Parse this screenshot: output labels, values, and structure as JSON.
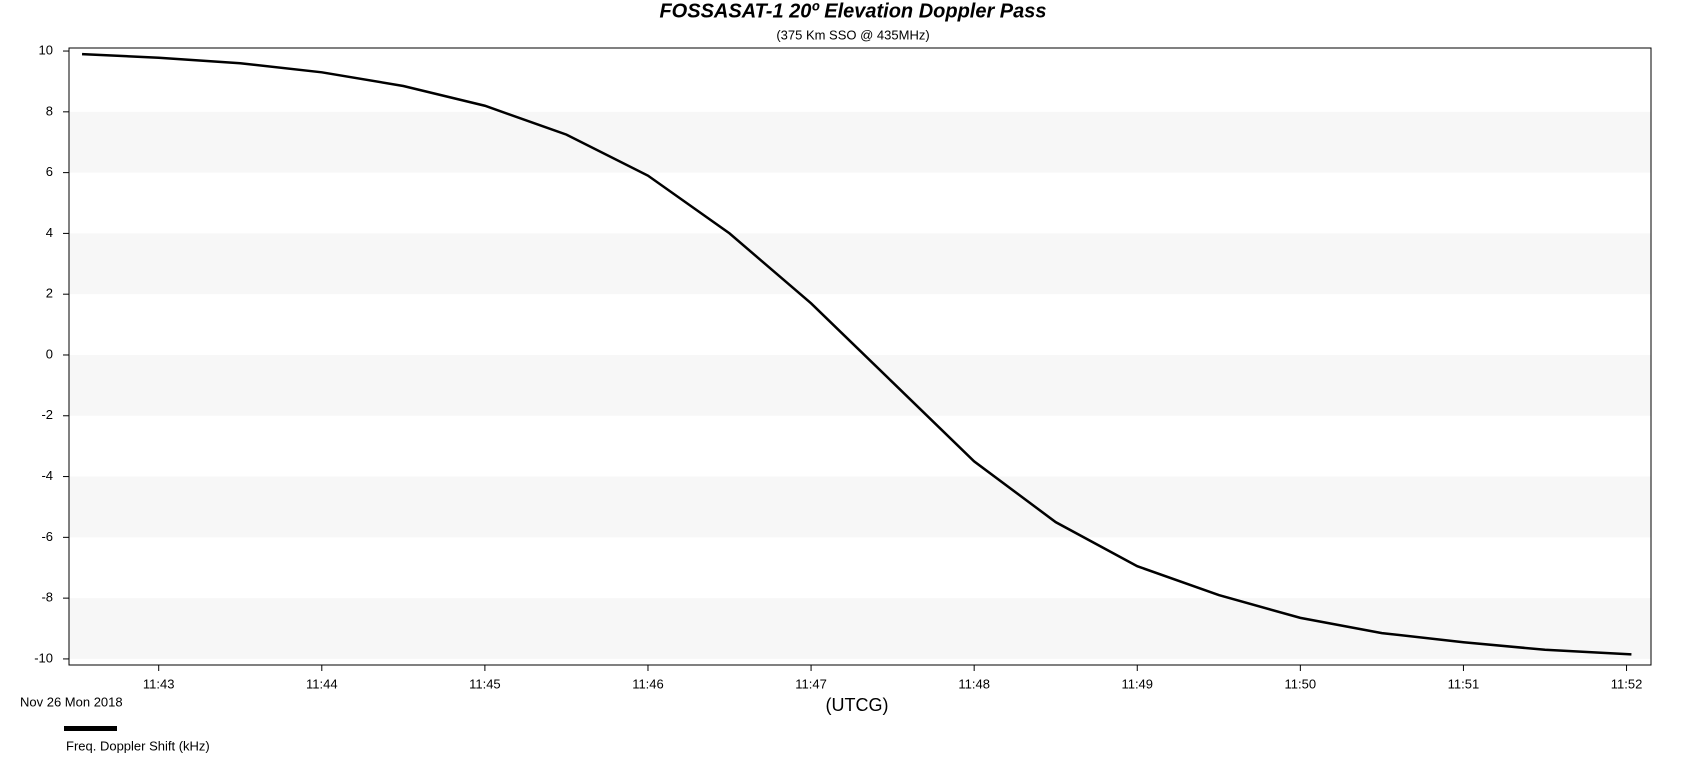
{
  "chart_data": {
    "type": "line",
    "title": "FOSSASAT-1 20º Elevation Doppler Pass",
    "subtitle": "(375 Km SSO @ 435MHz)",
    "x_label": "(UTCG)",
    "date_label": "Nov 26 Mon 2018",
    "x": [
      42.53,
      43.0,
      43.5,
      44.0,
      44.5,
      45.0,
      45.5,
      46.0,
      46.5,
      47.0,
      47.25,
      47.5,
      48.0,
      48.5,
      49.0,
      49.5,
      50.0,
      50.5,
      51.0,
      51.5,
      52.03
    ],
    "series": [
      {
        "name": "Freq. Doppler Shift (kHz)",
        "color": "#000000",
        "values": [
          9.9,
          9.78,
          9.6,
          9.3,
          8.85,
          8.2,
          7.25,
          5.9,
          4.0,
          1.7,
          0.4,
          -0.9,
          -3.5,
          -5.5,
          -6.95,
          -7.9,
          -8.65,
          -9.15,
          -9.45,
          -9.7,
          -9.85
        ]
      }
    ],
    "xlim": [
      42.45,
      52.15
    ],
    "xticks": [
      {
        "value": 43,
        "label": "11:43"
      },
      {
        "value": 44,
        "label": "11:44"
      },
      {
        "value": 45,
        "label": "11:45"
      },
      {
        "value": 46,
        "label": "11:46"
      },
      {
        "value": 47,
        "label": "11:47"
      },
      {
        "value": 48,
        "label": "11:48"
      },
      {
        "value": 49,
        "label": "11:49"
      },
      {
        "value": 50,
        "label": "11:50"
      },
      {
        "value": 51,
        "label": "11:51"
      },
      {
        "value": 52,
        "label": "11:52"
      }
    ],
    "ylim": [
      -10.2,
      10.1
    ],
    "yticks": [
      -10,
      -8,
      -6,
      -4,
      -2,
      0,
      2,
      4,
      6,
      8,
      10
    ],
    "band_color": "#f7f7f7"
  }
}
